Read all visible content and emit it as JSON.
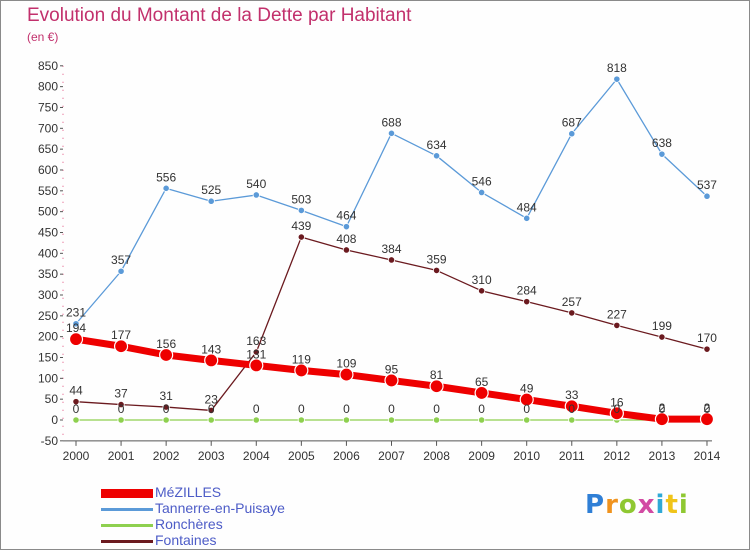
{
  "chart_data": {
    "type": "line",
    "title": "Evolution du Montant de la Dette par Habitant",
    "subtitle": "(en €)",
    "xlabel": "",
    "ylabel": "",
    "x": [
      "2000",
      "2001",
      "2002",
      "2003",
      "2004",
      "2005",
      "2006",
      "2007",
      "2008",
      "2009",
      "2010",
      "2011",
      "2012",
      "2013",
      "2014"
    ],
    "ylim": [
      -50,
      850
    ],
    "yticks": [
      -50,
      0,
      50,
      100,
      150,
      200,
      250,
      300,
      350,
      400,
      450,
      500,
      550,
      600,
      650,
      700,
      750,
      800,
      850
    ],
    "grid": false,
    "legend_position": "bottom-left",
    "series": [
      {
        "name": "Fontaines",
        "color": "#6b1a1f",
        "values": [
          44,
          37,
          31,
          23,
          163,
          439,
          408,
          384,
          359,
          310,
          284,
          257,
          227,
          199,
          170
        ]
      },
      {
        "name": "Ronchères",
        "color": "#8ed04f",
        "values": [
          0,
          0,
          0,
          0,
          0,
          0,
          0,
          0,
          0,
          0,
          0,
          0,
          0,
          0,
          0
        ]
      },
      {
        "name": "Tannerre-en-Puisaye",
        "color": "#5b9ad8",
        "values": [
          231,
          357,
          556,
          525,
          540,
          503,
          464,
          688,
          634,
          546,
          484,
          687,
          818,
          638,
          537
        ]
      },
      {
        "name": "MéZILLES",
        "color": "#ee0000",
        "values": [
          194,
          177,
          156,
          143,
          131,
          119,
          109,
          95,
          81,
          65,
          49,
          33,
          16,
          2,
          2
        ]
      }
    ]
  },
  "logo": {
    "letters": [
      "P",
      "r",
      "o",
      "x",
      "i",
      "t",
      "i"
    ],
    "colors": [
      "#2f7fd6",
      "#f0931e",
      "#8fc832",
      "#d24aa3",
      "#2fa9d6",
      "#f0c419",
      "#8fc832"
    ]
  }
}
